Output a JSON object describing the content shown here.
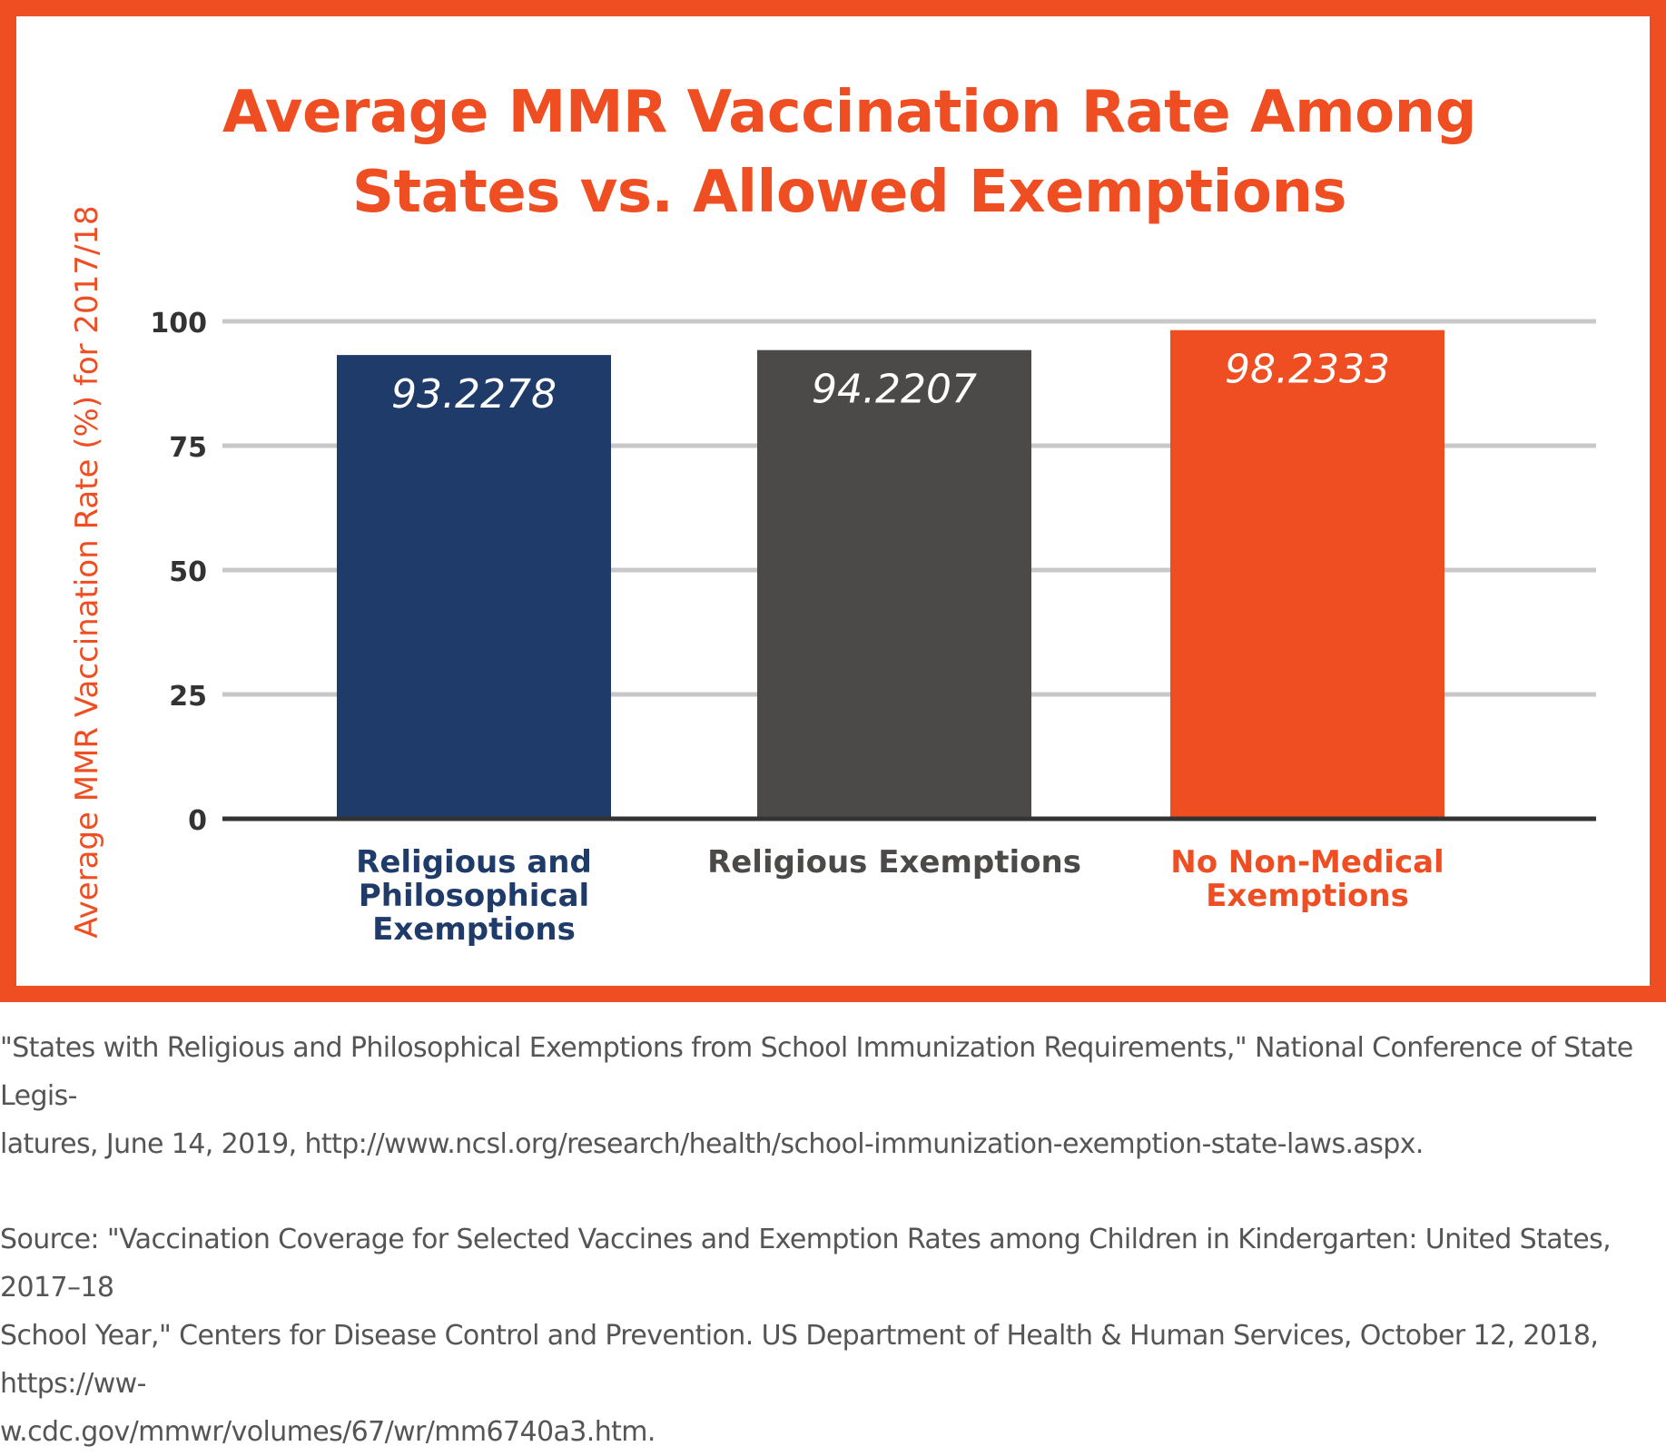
{
  "colors": {
    "accent": "#EF4E22",
    "navy": "#1F3B6A",
    "charcoal": "#4C4A49",
    "grid": "#C8C8C8",
    "axis": "#333333"
  },
  "chart_data": {
    "type": "bar",
    "title_lines": [
      "Average MMR Vaccination Rate Among",
      "States vs. Allowed Exemptions"
    ],
    "ylabel": "Average MMR Vaccination Rate (%) for 2017/18",
    "xlabel": "",
    "ylim": [
      0,
      100
    ],
    "yticks": [
      "100",
      "75",
      "50",
      "25",
      "0"
    ],
    "grid": true,
    "categories": [
      [
        "Religious and",
        "Philosophical",
        "Exemptions"
      ],
      [
        "Religious Exemptions"
      ],
      [
        "No Non-Medical",
        "Exemptions"
      ]
    ],
    "values": [
      93.2278,
      94.2207,
      98.2333
    ],
    "value_labels": [
      "93.2278",
      "94.2207",
      "98.2333"
    ],
    "bar_colors": [
      "#1F3B6A",
      "#4C4A49",
      "#EF4E22"
    ],
    "category_label_colors": [
      "#1F3B6A",
      "#4C4A49",
      "#EF4E22"
    ]
  },
  "footnotes": [
    "\"States with Religious and Philosophical Exemptions from School Immunization Requirements,\" National Conference of State Legis-",
    "latures, June 14, 2019, http://www.ncsl.org/research/health/school-immunization-exemption-state-laws.aspx.",
    "Source: \"Vaccination Coverage for Selected Vaccines and Exemption Rates among Children in Kindergarten: United States, 2017–18",
    "School Year,\" Centers for Disease Control and Prevention. US Department of Health & Human Services, October 12, 2018, https://ww-",
    "w.cdc.gov/mmwr/volumes/67/wr/mm6740a3.htm."
  ]
}
